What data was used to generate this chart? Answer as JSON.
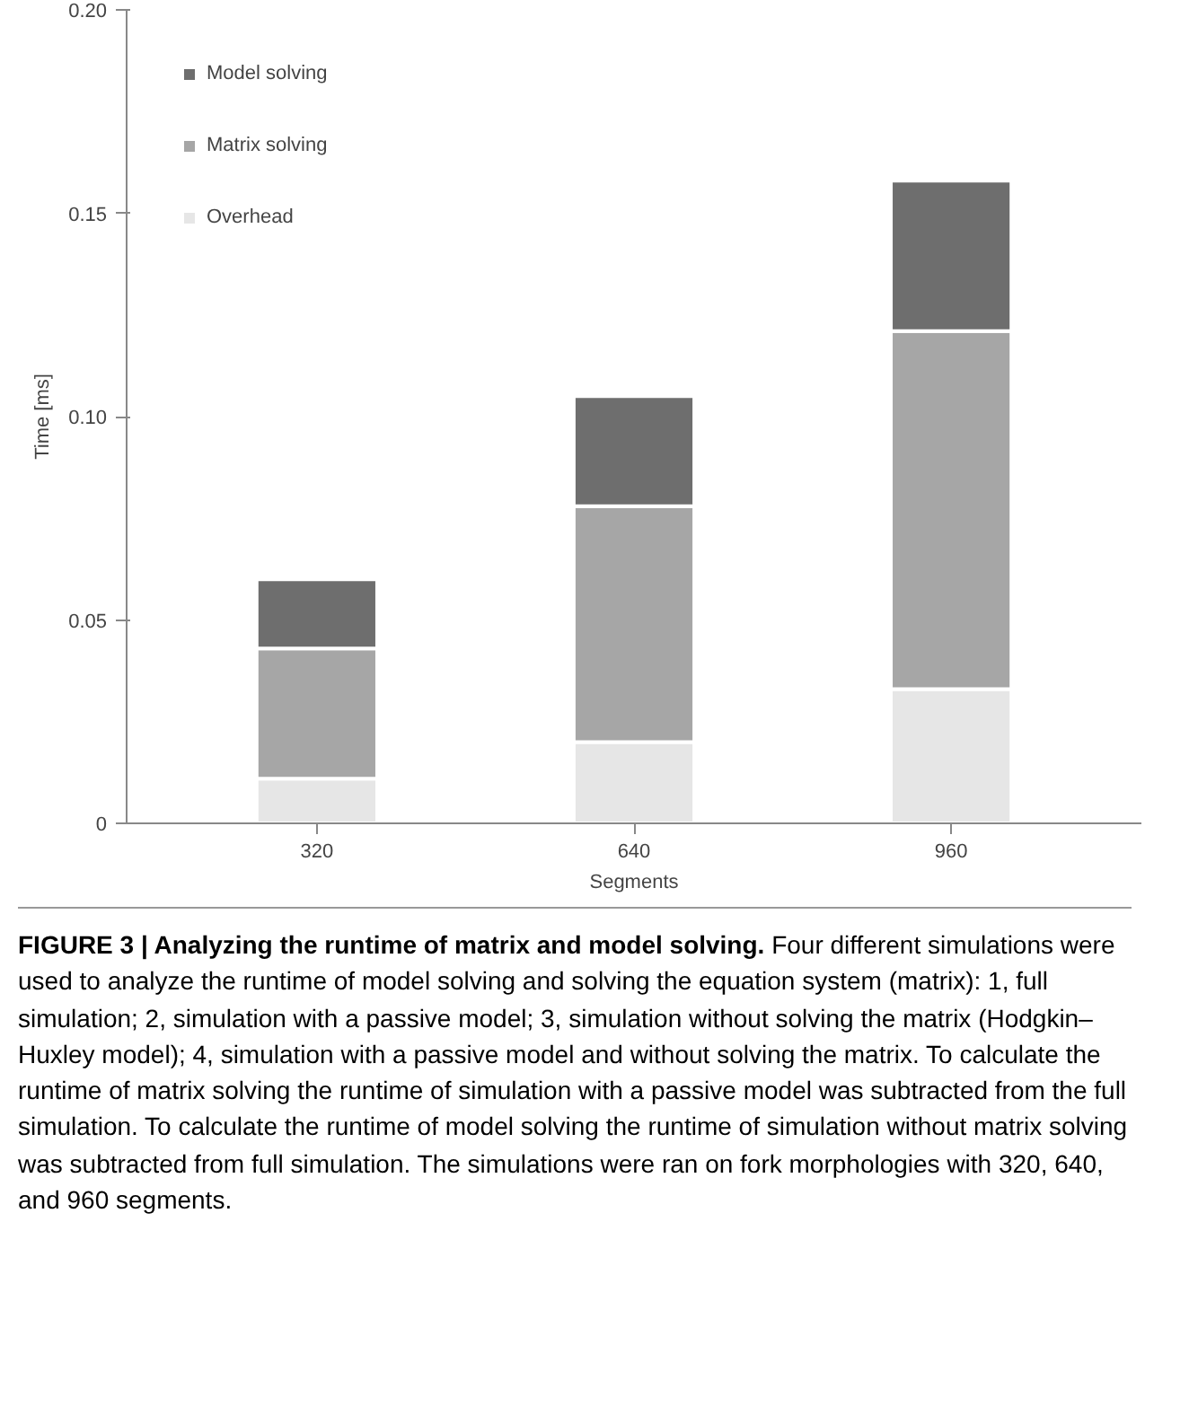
{
  "chart_data": {
    "type": "bar",
    "title": "FIGURE 3 | Analyzing the runtime of matrix and model solving.",
    "annotations": [
      "Four different simulations were used to analyze the runtime of model solving and solving the equation system (matrix): 1, full simulation; 2, simulation with a passive model; 3, simulation without solving the matrix (Hodgkin–Huxley model); 4, simulation with a passive model and without solving the matrix. To calculate the runtime of matrix solving the runtime of simulation with a passive model was subtracted from the full simulation. To calculate the runtime of model solving the runtime of simulation without matrix solving was subtracted from full simulation. The simulations were ran on fork morphologies with 320, 640, and 960 segments."
    ],
    "xlabel": "Segments",
    "ylabel": "Time [ms]",
    "categories": [
      "320",
      "640",
      "960"
    ],
    "stacked": true,
    "series": [
      {
        "name": "Overhead",
        "color": "#e6e6e6",
        "values": [
          0.011,
          0.02,
          0.033
        ]
      },
      {
        "name": "Matrix solving",
        "color": "#a6a6a6",
        "values": [
          0.032,
          0.058,
          0.088
        ]
      },
      {
        "name": "Model solving",
        "color": "#6e6e6e",
        "values": [
          0.017,
          0.027,
          0.037
        ]
      }
    ],
    "ylim": [
      0,
      0.2
    ],
    "yticks": [
      0,
      {
        "value": 0.05,
        "label": "0.05"
      },
      {
        "value": 0.1,
        "label": "0.10"
      },
      {
        "value": 0.15,
        "label": "0.15"
      },
      {
        "value": 0.2,
        "label": "0.20"
      }
    ],
    "grid": false,
    "legend": "top left"
  }
}
